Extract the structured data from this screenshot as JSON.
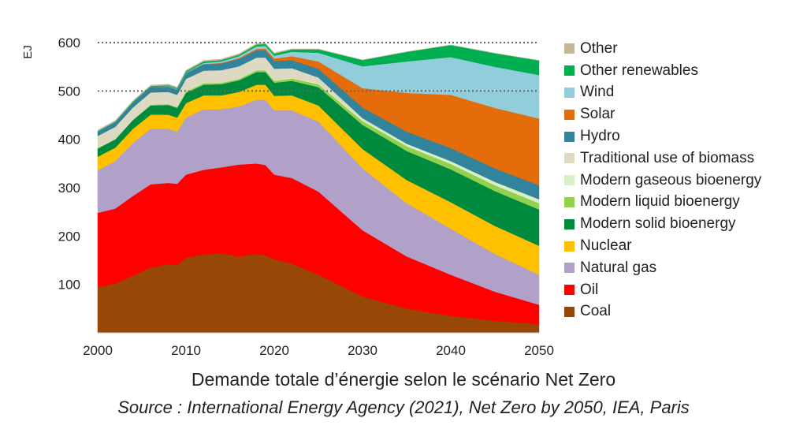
{
  "chart_data": {
    "type": "area",
    "stacked": true,
    "ylabel": "EJ",
    "xlabel": "",
    "x": [
      2000,
      2002,
      2004,
      2006,
      2008,
      2009,
      2010,
      2012,
      2014,
      2016,
      2018,
      2019,
      2020,
      2022,
      2025,
      2030,
      2035,
      2040,
      2045,
      2050
    ],
    "xticks": [
      2000,
      2010,
      2020,
      2030,
      2040,
      2050
    ],
    "yticks": [
      100,
      200,
      300,
      400,
      500,
      600
    ],
    "xlim": [
      2000,
      2050
    ],
    "ylim": [
      0,
      600
    ],
    "reference_lines": [
      600,
      500
    ],
    "legend_position": "right",
    "series": [
      {
        "name": "Coal",
        "color": "#974706",
        "values": [
          95,
          102,
          118,
          135,
          142,
          140,
          155,
          162,
          164,
          158,
          163,
          160,
          152,
          143,
          120,
          75,
          50,
          35,
          25,
          18
        ]
      },
      {
        "name": "Oil",
        "color": "#ff0000",
        "values": [
          153,
          155,
          165,
          172,
          168,
          168,
          172,
          175,
          178,
          190,
          187,
          187,
          175,
          177,
          172,
          137,
          108,
          85,
          60,
          40
        ]
      },
      {
        "name": "Natural gas",
        "color": "#b1a0c7",
        "values": [
          88,
          98,
          110,
          115,
          112,
          108,
          118,
          125,
          120,
          120,
          132,
          135,
          133,
          140,
          145,
          128,
          110,
          95,
          78,
          62
        ]
      },
      {
        "name": "Nuclear",
        "color": "#ffc000",
        "values": [
          28,
          28,
          29,
          29,
          29,
          29,
          30,
          29,
          29,
          30,
          31,
          31,
          30,
          31,
          33,
          40,
          48,
          55,
          58,
          60
        ]
      },
      {
        "name": "Modern solid bioenergy",
        "color": "#008a3e",
        "values": [
          17,
          17,
          18,
          19,
          20,
          20,
          21,
          22,
          23,
          24,
          26,
          26,
          27,
          30,
          38,
          50,
          60,
          68,
          72,
          75
        ]
      },
      {
        "name": "Modern liquid bioenergy",
        "color": "#92d050",
        "values": [
          1,
          1,
          1,
          2,
          2,
          2,
          3,
          3,
          3,
          3,
          4,
          4,
          4,
          5,
          6,
          8,
          10,
          11,
          12,
          13
        ]
      },
      {
        "name": "Modern gaseous bioenergy",
        "color": "#d8f0c8",
        "values": [
          0,
          0,
          0,
          0,
          0,
          0,
          1,
          1,
          1,
          1,
          1,
          1,
          1,
          1,
          2,
          3,
          5,
          6,
          7,
          8
        ]
      },
      {
        "name": "Traditional use of biomass",
        "color": "#ddd9c3",
        "values": [
          25,
          25,
          25,
          25,
          25,
          25,
          25,
          25,
          25,
          25,
          25,
          25,
          24,
          20,
          12,
          3,
          0,
          0,
          0,
          0
        ]
      },
      {
        "name": "Hydro",
        "color": "#31849b",
        "values": [
          9,
          10,
          10,
          11,
          11,
          11,
          12,
          13,
          14,
          15,
          15,
          15,
          16,
          17,
          18,
          22,
          25,
          27,
          28,
          29
        ]
      },
      {
        "name": "Solar",
        "color": "#e46c0a",
        "values": [
          0,
          0,
          0,
          0,
          0,
          0,
          0,
          1,
          1,
          2,
          3,
          4,
          5,
          8,
          15,
          40,
          80,
          110,
          125,
          138
        ]
      },
      {
        "name": "Wind",
        "color": "#92cddc",
        "values": [
          0,
          0,
          0,
          0,
          1,
          1,
          1,
          2,
          3,
          4,
          5,
          5,
          6,
          9,
          18,
          45,
          65,
          78,
          85,
          90
        ]
      },
      {
        "name": "Other renewables",
        "color": "#00b050",
        "values": [
          1,
          1,
          2,
          2,
          2,
          2,
          3,
          3,
          3,
          3,
          4,
          4,
          4,
          5,
          7,
          13,
          20,
          25,
          28,
          30
        ]
      },
      {
        "name": "Other",
        "color": "#c4b696",
        "values": [
          2,
          2,
          2,
          2,
          2,
          2,
          2,
          2,
          2,
          2,
          2,
          2,
          2,
          1,
          1,
          0,
          0,
          0,
          0,
          0
        ]
      }
    ]
  },
  "legend": {
    "items": [
      {
        "label": "Other",
        "color": "#c4b696"
      },
      {
        "label": "Other renewables",
        "color": "#00b050"
      },
      {
        "label": "Wind",
        "color": "#92cddc"
      },
      {
        "label": "Solar",
        "color": "#e46c0a"
      },
      {
        "label": "Hydro",
        "color": "#31849b"
      },
      {
        "label": "Traditional use of biomass",
        "color": "#ddd9c3"
      },
      {
        "label": "Modern gaseous bioenergy",
        "color": "#d8f0c8"
      },
      {
        "label": "Modern liquid bioenergy",
        "color": "#92d050"
      },
      {
        "label": "Modern solid bioenergy",
        "color": "#008a3e"
      },
      {
        "label": "Nuclear",
        "color": "#ffc000"
      },
      {
        "label": "Natural gas",
        "color": "#b1a0c7"
      },
      {
        "label": "Oil",
        "color": "#ff0000"
      },
      {
        "label": "Coal",
        "color": "#974706"
      }
    ]
  },
  "caption": {
    "title": "Demande totale d’énergie selon le scénario Net Zero",
    "source": "Source : International Energy Agency (2021), Net Zero by 2050, IEA, Paris"
  }
}
